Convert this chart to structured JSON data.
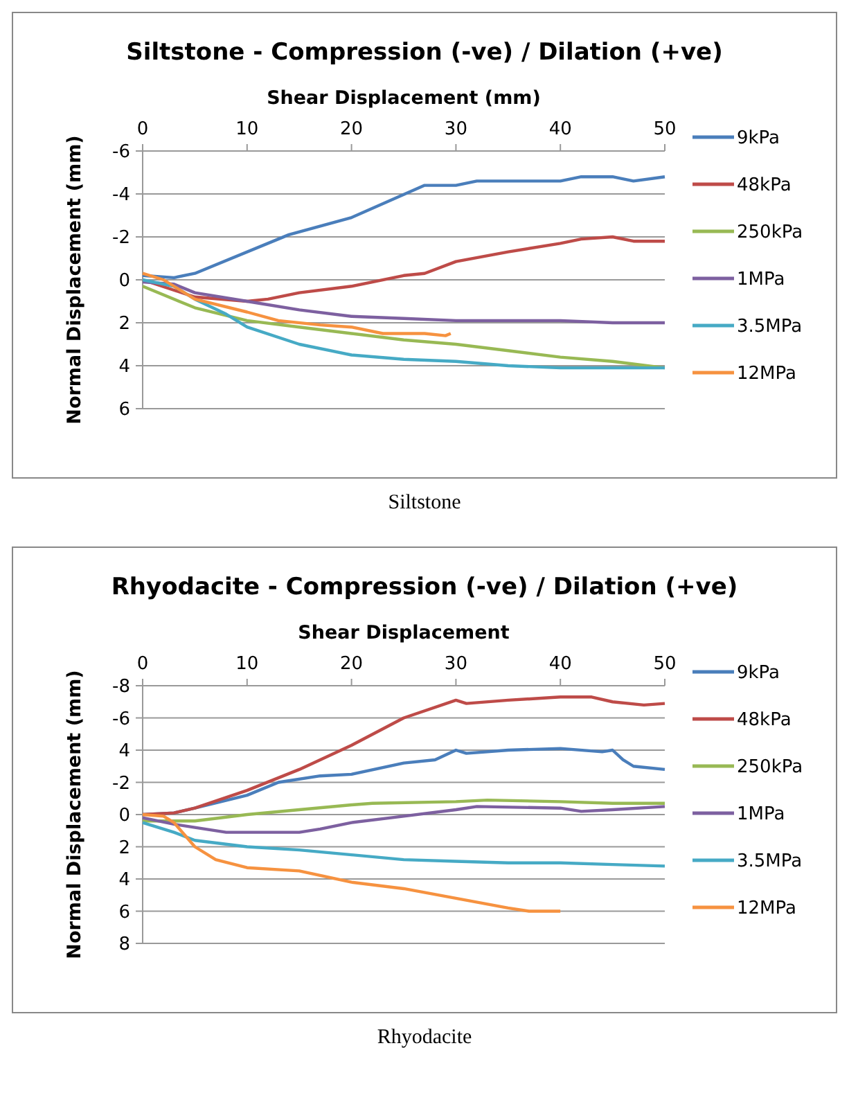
{
  "chart_data": [
    {
      "type": "line",
      "title": "Siltstone - Compression (-ve) / Dilation (+ve)",
      "xlabel": "Shear Displacement (mm)",
      "ylabel": "Normal Displacement (mm)",
      "annotations": [
        "Siltstone"
      ],
      "xlim": [
        0,
        50
      ],
      "xticks": [
        0,
        10,
        20,
        30,
        40,
        50
      ],
      "ylim": [
        6,
        -6
      ],
      "yticks": [
        -6,
        -4,
        -2,
        0,
        2,
        4,
        6
      ],
      "grid": "y",
      "legend": "right",
      "marker": "none",
      "line_style": "solid",
      "series": [
        {
          "name": "9kPa",
          "color": "#4a7ebb",
          "x": [
            0,
            3,
            5,
            14,
            20,
            27,
            30,
            32,
            40,
            42,
            45,
            47,
            50
          ],
          "values": [
            -0.2,
            -0.1,
            -0.3,
            -2.1,
            -2.9,
            -4.4,
            -4.4,
            -4.6,
            -4.6,
            -4.8,
            -4.8,
            -4.6,
            -4.8
          ]
        },
        {
          "name": "48kPa",
          "color": "#be4b48",
          "x": [
            0,
            5,
            10,
            12,
            15,
            20,
            25,
            27,
            30,
            35,
            40,
            42,
            45,
            47,
            50
          ],
          "values": [
            0,
            0.8,
            1.0,
            0.9,
            0.6,
            0.3,
            -0.2,
            -0.3,
            -0.85,
            -1.3,
            -1.7,
            -1.9,
            -2.0,
            -1.8,
            -1.8
          ]
        },
        {
          "name": "250kPa",
          "color": "#98b954",
          "x": [
            0,
            5,
            10,
            15,
            20,
            25,
            30,
            35,
            40,
            45,
            50
          ],
          "values": [
            0.3,
            1.3,
            1.9,
            2.2,
            2.5,
            2.8,
            3.0,
            3.3,
            3.6,
            3.8,
            4.1
          ]
        },
        {
          "name": "1MPa",
          "color": "#7d60a0",
          "x": [
            0,
            3,
            5,
            10,
            15,
            20,
            25,
            30,
            40,
            45,
            50
          ],
          "values": [
            0.1,
            0.2,
            0.6,
            1.0,
            1.4,
            1.7,
            1.8,
            1.9,
            1.9,
            2.0,
            2.0
          ]
        },
        {
          "name": "3.5MPa",
          "color": "#46aac5",
          "x": [
            0,
            3,
            5,
            8,
            10,
            15,
            20,
            25,
            30,
            35,
            40,
            50
          ],
          "values": [
            0,
            0.3,
            0.9,
            1.6,
            2.2,
            3.0,
            3.5,
            3.7,
            3.8,
            4.0,
            4.1,
            4.1
          ]
        },
        {
          "name": "12MPa",
          "color": "#f69240",
          "x": [
            0,
            2,
            5,
            10,
            13,
            17,
            20,
            23,
            27,
            29,
            29.5
          ],
          "values": [
            -0.3,
            0,
            0.9,
            1.5,
            1.9,
            2.1,
            2.2,
            2.5,
            2.5,
            2.6,
            2.5
          ]
        }
      ]
    },
    {
      "type": "line",
      "title": "Rhyodacite - Compression (-ve) / Dilation (+ve)",
      "xlabel": "Shear Displacement",
      "ylabel": "Normal Displacement (mm)",
      "annotations": [
        "Rhyodacite"
      ],
      "xlim": [
        0,
        50
      ],
      "xticks": [
        0,
        10,
        20,
        30,
        40,
        50
      ],
      "ylim": [
        8,
        -8
      ],
      "yticks": [
        -8,
        -6,
        {
          "value": -4,
          "label": "4"
        },
        -2,
        0,
        2,
        4,
        6,
        8
      ],
      "grid": "y",
      "legend": "right",
      "marker": "none",
      "line_style": "solid",
      "series": [
        {
          "name": "9kPa",
          "color": "#4a7ebb",
          "x": [
            0,
            3,
            5,
            10,
            13,
            17,
            20,
            25,
            28,
            30,
            31,
            35,
            40,
            44,
            45,
            46,
            47,
            50
          ],
          "values": [
            0,
            -0.1,
            -0.4,
            -1.2,
            -2.0,
            -2.4,
            -2.5,
            -3.2,
            -3.4,
            -4.0,
            -3.8,
            -4.0,
            -4.1,
            -3.9,
            -4.0,
            -3.4,
            -3.0,
            -2.8
          ]
        },
        {
          "name": "48kPa",
          "color": "#be4b48",
          "x": [
            0,
            3,
            5,
            10,
            15,
            20,
            25,
            30,
            31,
            35,
            40,
            43,
            45,
            48,
            50
          ],
          "values": [
            0,
            -0.1,
            -0.4,
            -1.5,
            -2.8,
            -4.3,
            -6.0,
            -7.1,
            -6.9,
            -7.1,
            -7.3,
            -7.3,
            -7.0,
            -6.8,
            -6.9
          ]
        },
        {
          "name": "250kPa",
          "color": "#98b954",
          "x": [
            0,
            5,
            10,
            15,
            20,
            22,
            30,
            33,
            40,
            45,
            50
          ],
          "values": [
            0.4,
            0.4,
            0,
            -0.3,
            -0.6,
            -0.7,
            -0.8,
            -0.9,
            -0.8,
            -0.7,
            -0.7
          ]
        },
        {
          "name": "1MPa",
          "color": "#7d60a0",
          "x": [
            0,
            3,
            5,
            8,
            15,
            17,
            20,
            25,
            30,
            32,
            40,
            42,
            45,
            50
          ],
          "values": [
            0.2,
            0.6,
            0.8,
            1.1,
            1.1,
            0.9,
            0.5,
            0.1,
            -0.3,
            -0.5,
            -0.4,
            -0.2,
            -0.3,
            -0.5
          ]
        },
        {
          "name": "3.5MPa",
          "color": "#46aac5",
          "x": [
            0,
            3,
            5,
            10,
            15,
            20,
            25,
            30,
            35,
            40,
            45,
            50
          ],
          "values": [
            0.5,
            1.1,
            1.6,
            2.0,
            2.2,
            2.5,
            2.8,
            2.9,
            3.0,
            3.0,
            3.1,
            3.2
          ]
        },
        {
          "name": "12MPa",
          "color": "#f69240",
          "x": [
            0,
            2,
            3,
            5,
            7,
            10,
            15,
            20,
            25,
            30,
            35,
            37,
            40
          ],
          "values": [
            0,
            0.1,
            0.5,
            2.0,
            2.8,
            3.3,
            3.5,
            4.2,
            4.6,
            5.2,
            5.8,
            6.0,
            6.0
          ]
        }
      ]
    }
  ]
}
